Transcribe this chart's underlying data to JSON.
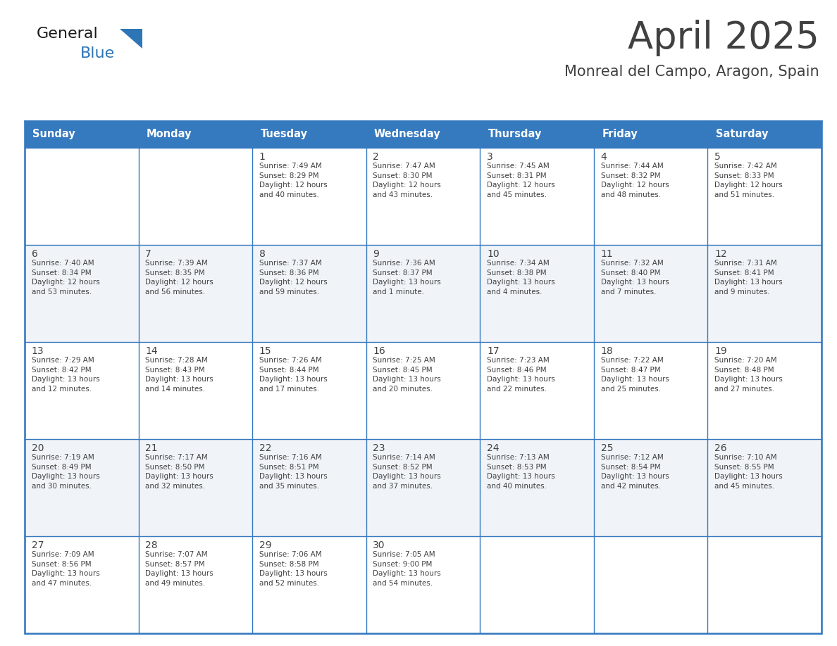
{
  "title": "April 2025",
  "subtitle": "Monreal del Campo, Aragon, Spain",
  "header_bg": "#3579BF",
  "header_text": "#FFFFFF",
  "cell_bg": "#FFFFFF",
  "cell_bg_alt": "#F0F4F8",
  "border_color": "#3579BF",
  "grid_color": "#3579BF",
  "text_color": "#404040",
  "days_of_week": [
    "Sunday",
    "Monday",
    "Tuesday",
    "Wednesday",
    "Thursday",
    "Friday",
    "Saturday"
  ],
  "weeks": [
    [
      {
        "day": "",
        "info": ""
      },
      {
        "day": "",
        "info": ""
      },
      {
        "day": "1",
        "info": "Sunrise: 7:49 AM\nSunset: 8:29 PM\nDaylight: 12 hours\nand 40 minutes."
      },
      {
        "day": "2",
        "info": "Sunrise: 7:47 AM\nSunset: 8:30 PM\nDaylight: 12 hours\nand 43 minutes."
      },
      {
        "day": "3",
        "info": "Sunrise: 7:45 AM\nSunset: 8:31 PM\nDaylight: 12 hours\nand 45 minutes."
      },
      {
        "day": "4",
        "info": "Sunrise: 7:44 AM\nSunset: 8:32 PM\nDaylight: 12 hours\nand 48 minutes."
      },
      {
        "day": "5",
        "info": "Sunrise: 7:42 AM\nSunset: 8:33 PM\nDaylight: 12 hours\nand 51 minutes."
      }
    ],
    [
      {
        "day": "6",
        "info": "Sunrise: 7:40 AM\nSunset: 8:34 PM\nDaylight: 12 hours\nand 53 minutes."
      },
      {
        "day": "7",
        "info": "Sunrise: 7:39 AM\nSunset: 8:35 PM\nDaylight: 12 hours\nand 56 minutes."
      },
      {
        "day": "8",
        "info": "Sunrise: 7:37 AM\nSunset: 8:36 PM\nDaylight: 12 hours\nand 59 minutes."
      },
      {
        "day": "9",
        "info": "Sunrise: 7:36 AM\nSunset: 8:37 PM\nDaylight: 13 hours\nand 1 minute."
      },
      {
        "day": "10",
        "info": "Sunrise: 7:34 AM\nSunset: 8:38 PM\nDaylight: 13 hours\nand 4 minutes."
      },
      {
        "day": "11",
        "info": "Sunrise: 7:32 AM\nSunset: 8:40 PM\nDaylight: 13 hours\nand 7 minutes."
      },
      {
        "day": "12",
        "info": "Sunrise: 7:31 AM\nSunset: 8:41 PM\nDaylight: 13 hours\nand 9 minutes."
      }
    ],
    [
      {
        "day": "13",
        "info": "Sunrise: 7:29 AM\nSunset: 8:42 PM\nDaylight: 13 hours\nand 12 minutes."
      },
      {
        "day": "14",
        "info": "Sunrise: 7:28 AM\nSunset: 8:43 PM\nDaylight: 13 hours\nand 14 minutes."
      },
      {
        "day": "15",
        "info": "Sunrise: 7:26 AM\nSunset: 8:44 PM\nDaylight: 13 hours\nand 17 minutes."
      },
      {
        "day": "16",
        "info": "Sunrise: 7:25 AM\nSunset: 8:45 PM\nDaylight: 13 hours\nand 20 minutes."
      },
      {
        "day": "17",
        "info": "Sunrise: 7:23 AM\nSunset: 8:46 PM\nDaylight: 13 hours\nand 22 minutes."
      },
      {
        "day": "18",
        "info": "Sunrise: 7:22 AM\nSunset: 8:47 PM\nDaylight: 13 hours\nand 25 minutes."
      },
      {
        "day": "19",
        "info": "Sunrise: 7:20 AM\nSunset: 8:48 PM\nDaylight: 13 hours\nand 27 minutes."
      }
    ],
    [
      {
        "day": "20",
        "info": "Sunrise: 7:19 AM\nSunset: 8:49 PM\nDaylight: 13 hours\nand 30 minutes."
      },
      {
        "day": "21",
        "info": "Sunrise: 7:17 AM\nSunset: 8:50 PM\nDaylight: 13 hours\nand 32 minutes."
      },
      {
        "day": "22",
        "info": "Sunrise: 7:16 AM\nSunset: 8:51 PM\nDaylight: 13 hours\nand 35 minutes."
      },
      {
        "day": "23",
        "info": "Sunrise: 7:14 AM\nSunset: 8:52 PM\nDaylight: 13 hours\nand 37 minutes."
      },
      {
        "day": "24",
        "info": "Sunrise: 7:13 AM\nSunset: 8:53 PM\nDaylight: 13 hours\nand 40 minutes."
      },
      {
        "day": "25",
        "info": "Sunrise: 7:12 AM\nSunset: 8:54 PM\nDaylight: 13 hours\nand 42 minutes."
      },
      {
        "day": "26",
        "info": "Sunrise: 7:10 AM\nSunset: 8:55 PM\nDaylight: 13 hours\nand 45 minutes."
      }
    ],
    [
      {
        "day": "27",
        "info": "Sunrise: 7:09 AM\nSunset: 8:56 PM\nDaylight: 13 hours\nand 47 minutes."
      },
      {
        "day": "28",
        "info": "Sunrise: 7:07 AM\nSunset: 8:57 PM\nDaylight: 13 hours\nand 49 minutes."
      },
      {
        "day": "29",
        "info": "Sunrise: 7:06 AM\nSunset: 8:58 PM\nDaylight: 13 hours\nand 52 minutes."
      },
      {
        "day": "30",
        "info": "Sunrise: 7:05 AM\nSunset: 9:00 PM\nDaylight: 13 hours\nand 54 minutes."
      },
      {
        "day": "",
        "info": ""
      },
      {
        "day": "",
        "info": ""
      },
      {
        "day": "",
        "info": ""
      }
    ]
  ],
  "logo_general_color": "#1a1a1a",
  "logo_blue_color": "#2E75B6"
}
